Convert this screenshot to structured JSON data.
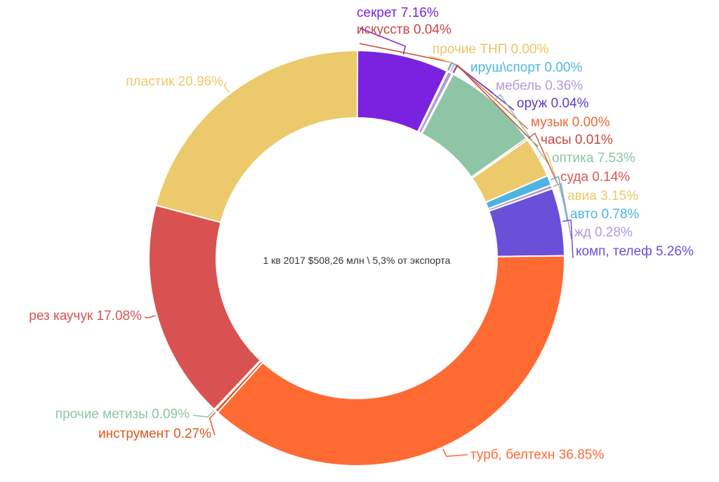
{
  "chart_data": {
    "type": "pie",
    "donut": true,
    "center_text": "1 кв 2017 $508,26 млн \\ 5,3% от экспорта",
    "legend": "none",
    "slices": [
      {
        "name": "секрет",
        "value": 7.16,
        "display": "секрет 7.16%",
        "color": "#7b22e0"
      },
      {
        "name": "искусств",
        "value": 0.04,
        "display": "искусств 0.04%",
        "color": "#cc4444"
      },
      {
        "name": "прочие ТНП",
        "value": 0.0,
        "display": "прочие ТНП 0.00%",
        "color": "#e8c765"
      },
      {
        "name": "ируш\\спорт",
        "value": 0.0,
        "display": "ируш\\спорт 0.00%",
        "color": "#4db6e3"
      },
      {
        "name": "мебель",
        "value": 0.36,
        "display": "мебель 0.36%",
        "color": "#b19ad9"
      },
      {
        "name": "оруж",
        "value": 0.04,
        "display": "оруж 0.04%",
        "color": "#5c3bc8"
      },
      {
        "name": "музык",
        "value": 0.0,
        "display": "музык 0.00%",
        "color": "#e86a33"
      },
      {
        "name": "часы",
        "value": 0.01,
        "display": "часы 0.01%",
        "color": "#c24a3a"
      },
      {
        "name": "оптика",
        "value": 7.53,
        "display": "оптика 7.53%",
        "color": "#8ec5a6"
      },
      {
        "name": "суда",
        "value": 0.14,
        "display": "суда 0.14%",
        "color": "#d85656"
      },
      {
        "name": "авиа",
        "value": 3.15,
        "display": "авиа 3.15%",
        "color": "#ecc96a"
      },
      {
        "name": "авто",
        "value": 0.78,
        "display": "авто 0.78%",
        "color": "#4fb3e0"
      },
      {
        "name": "жд",
        "value": 0.28,
        "display": "жд 0.28%",
        "color": "#b19ad9"
      },
      {
        "name": "комп, телеф",
        "value": 5.26,
        "display": "комп, телеф 5.26%",
        "color": "#6a4fd9"
      },
      {
        "name": "турб, белтехн",
        "value": 36.85,
        "display": "турб, белтехн 36.85%",
        "color": "#ff6a33"
      },
      {
        "name": "инструмент",
        "value": 0.27,
        "display": "инструмент 0.27%",
        "color": "#e0561f"
      },
      {
        "name": "прочие метизы",
        "value": 0.09,
        "display": "прочие метизы 0.09%",
        "color": "#8ec5a6"
      },
      {
        "name": "рез каучук",
        "value": 17.08,
        "display": "рез каучук 17.08%",
        "color": "#d85252"
      },
      {
        "name": "пластик",
        "value": 20.96,
        "display": "пластик 20.96%",
        "color": "#ecc96a"
      }
    ]
  }
}
